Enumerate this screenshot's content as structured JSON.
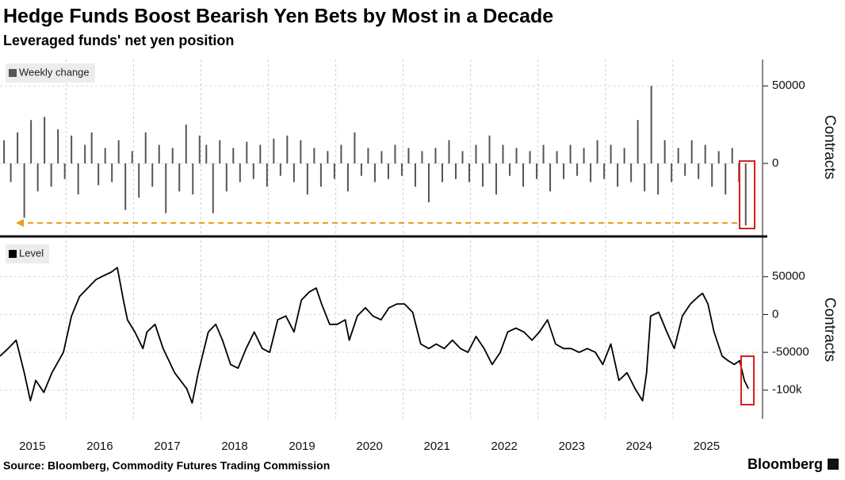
{
  "header": {
    "title": "Hedge Funds Boost Bearish Yen Bets by Most in a Decade",
    "subtitle": "Leveraged funds' net yen position"
  },
  "footer": {
    "source": "Source: Bloomberg, Commodity Futures Trading Commission",
    "brand": "Bloomberg"
  },
  "chart_data": [
    {
      "type": "bar",
      "ylabel": "Contracts",
      "xlim": [
        2015.02,
        2026.33
      ],
      "xticks": [
        2015,
        2016,
        2017,
        2018,
        2019,
        2020,
        2021,
        2022,
        2023,
        2024,
        2025
      ],
      "ylim": [
        -46000,
        67000
      ],
      "yticks": [
        0,
        50000
      ],
      "grid": true,
      "legend": "top-left",
      "x": [
        2015.08,
        2015.18,
        2015.28,
        2015.38,
        2015.48,
        2015.58,
        2015.68,
        2015.78,
        2015.88,
        2015.98,
        2016.08,
        2016.18,
        2016.28,
        2016.38,
        2016.48,
        2016.58,
        2016.68,
        2016.78,
        2016.88,
        2016.98,
        2017.08,
        2017.18,
        2017.28,
        2017.38,
        2017.48,
        2017.58,
        2017.68,
        2017.78,
        2017.88,
        2017.98,
        2018.08,
        2018.18,
        2018.28,
        2018.38,
        2018.48,
        2018.58,
        2018.68,
        2018.78,
        2018.88,
        2018.98,
        2019.08,
        2019.18,
        2019.28,
        2019.38,
        2019.48,
        2019.58,
        2019.68,
        2019.78,
        2019.88,
        2019.98,
        2020.08,
        2020.18,
        2020.28,
        2020.38,
        2020.48,
        2020.58,
        2020.68,
        2020.78,
        2020.88,
        2020.98,
        2021.08,
        2021.18,
        2021.28,
        2021.38,
        2021.48,
        2021.58,
        2021.68,
        2021.78,
        2021.88,
        2021.98,
        2022.08,
        2022.18,
        2022.28,
        2022.38,
        2022.48,
        2022.58,
        2022.68,
        2022.78,
        2022.88,
        2022.98,
        2023.08,
        2023.18,
        2023.28,
        2023.38,
        2023.48,
        2023.58,
        2023.68,
        2023.78,
        2023.88,
        2023.98,
        2024.08,
        2024.18,
        2024.28,
        2024.38,
        2024.48,
        2024.58,
        2024.68,
        2024.78,
        2024.88,
        2024.98,
        2025.08,
        2025.18,
        2025.28,
        2025.38,
        2025.48,
        2025.58,
        2025.68,
        2025.78,
        2025.88,
        2025.98,
        2026.08
      ],
      "series": [
        {
          "name": "Weekly change",
          "color": "#555555",
          "values": [
            15000,
            -12000,
            20000,
            -35000,
            28000,
            -18000,
            30000,
            -15000,
            22000,
            -10000,
            18000,
            -20000,
            12000,
            20000,
            -14000,
            10000,
            -12000,
            15000,
            -30000,
            8000,
            -22000,
            20000,
            -15000,
            12000,
            -32000,
            10000,
            -18000,
            25000,
            -20000,
            18000,
            12000,
            -32000,
            15000,
            -18000,
            10000,
            -12000,
            14000,
            -10000,
            12000,
            -15000,
            16000,
            -8000,
            18000,
            -12000,
            15000,
            -20000,
            10000,
            -15000,
            8000,
            -10000,
            12000,
            -18000,
            20000,
            -8000,
            10000,
            -12000,
            8000,
            -10000,
            12000,
            -8000,
            10000,
            -15000,
            8000,
            -25000,
            10000,
            -12000,
            15000,
            -10000,
            8000,
            -12000,
            12000,
            -15000,
            18000,
            -20000,
            12000,
            -8000,
            10000,
            -15000,
            8000,
            -10000,
            12000,
            -18000,
            8000,
            -10000,
            12000,
            -8000,
            10000,
            -12000,
            15000,
            -10000,
            12000,
            -15000,
            10000,
            -12000,
            28000,
            -18000,
            50000,
            -20000,
            15000,
            -12000,
            10000,
            -8000,
            15000,
            -10000,
            12000,
            -15000,
            8000,
            -20000,
            10000,
            -12000,
            -40000
          ]
        }
      ]
    },
    {
      "type": "line",
      "ylabel": "Contracts",
      "xlim": [
        2015.02,
        2026.33
      ],
      "xticks": [
        2015,
        2016,
        2017,
        2018,
        2019,
        2020,
        2021,
        2022,
        2023,
        2024,
        2025
      ],
      "ylim": [
        -138000,
        98000
      ],
      "yticks": [
        50000,
        0,
        -50000,
        {
          "value": -100000,
          "label": "-100k"
        }
      ],
      "grid": true,
      "legend": "top-left",
      "x": [
        2015.02,
        2015.14,
        2015.26,
        2015.38,
        2015.47,
        2015.55,
        2015.67,
        2015.79,
        2015.96,
        2016.08,
        2016.2,
        2016.32,
        2016.44,
        2016.55,
        2016.67,
        2016.76,
        2016.85,
        2016.91,
        2017.02,
        2017.14,
        2017.2,
        2017.32,
        2017.44,
        2017.61,
        2017.79,
        2017.87,
        2017.96,
        2018.11,
        2018.22,
        2018.32,
        2018.44,
        2018.55,
        2018.67,
        2018.79,
        2018.91,
        2019.02,
        2019.14,
        2019.26,
        2019.38,
        2019.49,
        2019.61,
        2019.71,
        2019.79,
        2019.91,
        2020.02,
        2020.14,
        2020.2,
        2020.32,
        2020.44,
        2020.55,
        2020.67,
        2020.79,
        2020.91,
        2021.02,
        2021.14,
        2021.26,
        2021.38,
        2021.49,
        2021.61,
        2021.73,
        2021.85,
        2021.96,
        2022.08,
        2022.2,
        2022.32,
        2022.44,
        2022.55,
        2022.67,
        2022.79,
        2022.91,
        2023.02,
        2023.14,
        2023.26,
        2023.38,
        2023.49,
        2023.61,
        2023.73,
        2023.85,
        2023.96,
        2024.08,
        2024.2,
        2024.32,
        2024.44,
        2024.55,
        2024.61,
        2024.67,
        2024.79,
        2024.91,
        2025.02,
        2025.14,
        2025.26,
        2025.38,
        2025.44,
        2025.52,
        2025.61,
        2025.73,
        2025.82,
        2025.91,
        2025.99,
        2026.06,
        2026.12
      ],
      "series": [
        {
          "name": "Level",
          "color": "#000000",
          "values": [
            -55000,
            -45000,
            -34000,
            -77000,
            -114000,
            -87000,
            -103000,
            -77000,
            -50000,
            -2000,
            24000,
            35000,
            46000,
            51000,
            56000,
            62000,
            19000,
            -7000,
            -23000,
            -45000,
            -23000,
            -13000,
            -45000,
            -77000,
            -98000,
            -117000,
            -77000,
            -23000,
            -13000,
            -34000,
            -66000,
            -71000,
            -45000,
            -23000,
            -45000,
            -50000,
            -7000,
            -2000,
            -23000,
            19000,
            30000,
            35000,
            14000,
            -13000,
            -13000,
            -7000,
            -34000,
            -2000,
            9000,
            -2000,
            -7000,
            9000,
            14000,
            14000,
            3000,
            -39000,
            -45000,
            -39000,
            -45000,
            -34000,
            -45000,
            -50000,
            -29000,
            -45000,
            -66000,
            -50000,
            -23000,
            -18000,
            -23000,
            -34000,
            -23000,
            -7000,
            -39000,
            -45000,
            -45000,
            -50000,
            -45000,
            -50000,
            -66000,
            -39000,
            -87000,
            -77000,
            -98000,
            -114000,
            -77000,
            -2000,
            3000,
            -23000,
            -45000,
            -2000,
            14000,
            24000,
            28000,
            14000,
            -23000,
            -55000,
            -61000,
            -66000,
            -61000,
            -87000,
            -98000
          ]
        }
      ]
    }
  ]
}
